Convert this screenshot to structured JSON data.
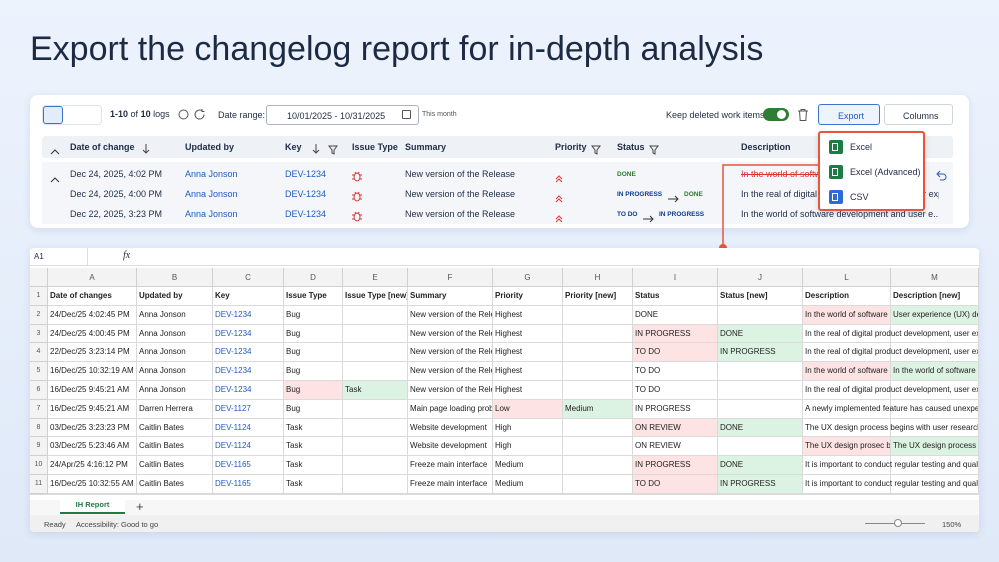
{
  "headline": "Export the changelog report for in-depth analysis",
  "toolbar": {
    "range": "1-10",
    "of": "of",
    "total": "10",
    "unit": "logs",
    "date_label": "Date range:",
    "date_value": "10/01/2025 - 10/31/2025",
    "date_hint": "This month",
    "keep_deleted": "Keep deleted work items",
    "export": "Export",
    "columns": "Columns"
  },
  "table": {
    "headers": [
      "Date of change",
      "Updated by",
      "Key",
      "Issue Type",
      "Summary",
      "Priority",
      "Status",
      "Description"
    ],
    "rows": [
      {
        "date": "Dec 24, 2025, 4:02 PM",
        "user": "Anna Jonson",
        "key": "DEV-1234",
        "summary": "New version of the Release",
        "status_from": null,
        "status_to": "DONE",
        "description": "In the world of software development"
      },
      {
        "date": "Dec 24, 2025, 4:00 PM",
        "user": "Anna Jonson",
        "key": "DEV-1234",
        "summary": "New version of the Release",
        "status_from": "IN PROGRESS",
        "status_to": "DONE",
        "description": "In the real of digital product development, user expe..."
      },
      {
        "date": "Dec 22, 2025, 3:23 PM",
        "user": "Anna Jonson",
        "key": "DEV-1234",
        "summary": "New version of the Release",
        "status_from": "TO DO",
        "status_to": "IN PROGRESS",
        "description": "In the world of software development and user e..."
      }
    ]
  },
  "export_menu": [
    "Excel",
    "Excel (Advanced)",
    "CSV"
  ],
  "sheet": {
    "cell_ref": "A1",
    "fx": "fx",
    "columns": [
      "A",
      "B",
      "C",
      "D",
      "E",
      "F",
      "G",
      "H",
      "I",
      "J",
      "L",
      "M"
    ],
    "row_numbers": [
      1,
      2,
      3,
      4,
      5,
      6,
      7,
      8,
      9,
      10,
      11
    ],
    "header": [
      "Date of changes",
      "Updated by",
      "Key",
      "Issue Type",
      "Issue Type [new]",
      "Summary",
      "Priority",
      "Priority [new]",
      "Status",
      "Status [new]",
      "Description",
      "Description [new]"
    ],
    "rows": [
      [
        "24/Dec/25 4:02:45 PM",
        "Anna Jonson",
        "DEV-1234",
        "Bug",
        null,
        "New version of the Release",
        "Highest",
        null,
        "DONE",
        null,
        "In the world of software development",
        "User experience (UX) design"
      ],
      [
        "24/Dec/25 4:00:45 PM",
        "Anna Jonson",
        "DEV-1234",
        "Bug",
        null,
        "New version of the Release",
        "Highest",
        null,
        "IN PROGRESS",
        "DONE",
        "In the real of digital product development, user experience",
        null
      ],
      [
        "22/Dec/25 3:23:14 PM",
        "Anna Jonson",
        "DEV-1234",
        "Bug",
        null,
        "New version of the Release",
        "Highest",
        null,
        "TO DO",
        "IN PROGRESS",
        "In the real of digital product development, user experience",
        null
      ],
      [
        "16/Dec/25 10:32:19 AM",
        "Anna Jonson",
        "DEV-1234",
        "Bug",
        null,
        "New version of the Release",
        "Highest",
        null,
        "TO DO",
        null,
        "In the world of software development",
        "In the world of software"
      ],
      [
        "16/Dec/25 9:45:21 AM",
        "Anna Jonson",
        "DEV-1234",
        "Bug",
        "Task",
        "New version of the Release",
        "Highest",
        null,
        "TO DO",
        null,
        "In the real of digital product development, user experience",
        null
      ],
      [
        "16/Dec/25 9:45:21 AM",
        "Darren Herrera",
        "DEV-1127",
        "Bug",
        null,
        "Main page loading problem",
        "Low",
        "Medium",
        "IN PROGRESS",
        null,
        "A newly implemented feature has caused unexpected",
        null
      ],
      [
        "03/Dec/25 3:23:23 PM",
        "Caitlin Bates",
        "DEV-1124",
        "Task",
        null,
        "Website development",
        "High",
        null,
        "ON REVIEW",
        "DONE",
        "The UX design process begins with user research,",
        null
      ],
      [
        "03/Dec/25 5:23:46 AM",
        "Caitlin Bates",
        "DEV-1124",
        "Task",
        null,
        "Website development",
        "High",
        null,
        "ON REVIEW",
        null,
        "The UX design prosec begins",
        "The UX design process begins"
      ],
      [
        "24/Apr/25 4:16:12 PM",
        "Caitlin Bates",
        "DEV-1165",
        "Task",
        null,
        "Freeze main interface",
        "Medium",
        null,
        "IN PROGRESS",
        "DONE",
        "It is important to conduct regular testing and quality",
        null
      ],
      [
        "16/Dec/25 10:32:55 AM",
        "Caitlin Bates",
        "DEV-1165",
        "Task",
        null,
        "Freeze main interface",
        "Medium",
        null,
        "TO DO",
        "IN PROGRESS",
        "It is important to conduct regular testing and quality",
        null
      ]
    ],
    "tab": "IH Report",
    "status": "Ready",
    "accessibility": "Accessibility: Good to go",
    "zoom": "150%"
  }
}
